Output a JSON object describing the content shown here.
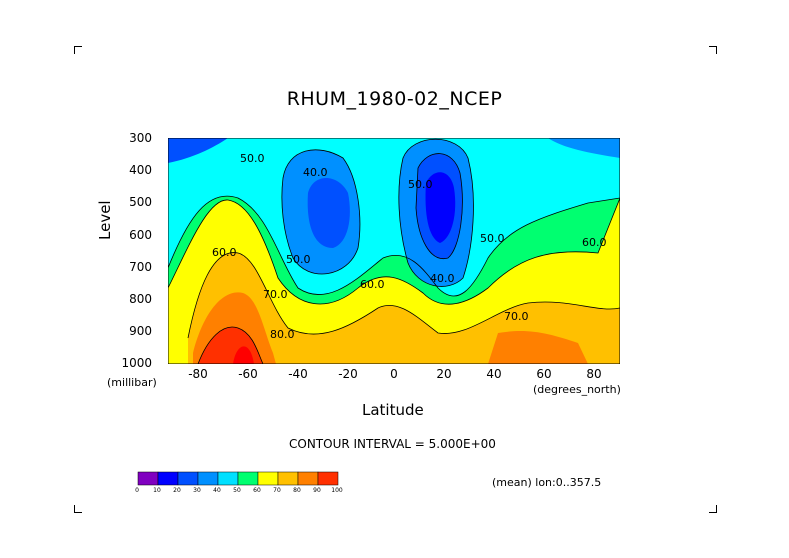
{
  "page": {
    "title": "RHUM_1980-02_NCEP",
    "contour_interval": "CONTOUR INTERVAL = 5.000E+00",
    "mean_note": "(mean) lon:0..357.5",
    "ylabel": "Level",
    "yunits": "(millibar)",
    "xlabel": "Latitude",
    "xunits": "(degrees_north)"
  },
  "chart_data": {
    "type": "contour",
    "title": "RHUM_1980-02_NCEP",
    "xlabel": "Latitude",
    "xunits": "(degrees_north)",
    "ylabel": "Level",
    "yunits": "(millibar)",
    "xlim": [
      -90,
      90
    ],
    "ylim": [
      1000,
      300
    ],
    "x_ticks": [
      -80,
      -60,
      -40,
      -20,
      0,
      20,
      40,
      60,
      80
    ],
    "y_ticks": [
      300,
      400,
      500,
      600,
      700,
      800,
      900,
      1000
    ],
    "contour_interval": 5,
    "contour_labels": [
      "50.0",
      "40.0",
      "60.0",
      "50.0",
      "70.0",
      "60.0",
      "80.0",
      "50.0",
      "40.0",
      "50.0",
      "70.0",
      "60.0"
    ],
    "colorbar": {
      "ticks": [
        "0",
        "10",
        "20",
        "30",
        "40",
        "50",
        "60",
        "70",
        "80",
        "90",
        "100"
      ],
      "colors": [
        "#8000c0",
        "#0000ff",
        "#0050ff",
        "#0090ff",
        "#00e0ff",
        "#00ff70",
        "#ffff00",
        "#ffc000",
        "#ff8000",
        "#ff3000",
        "#ff0000"
      ]
    }
  }
}
